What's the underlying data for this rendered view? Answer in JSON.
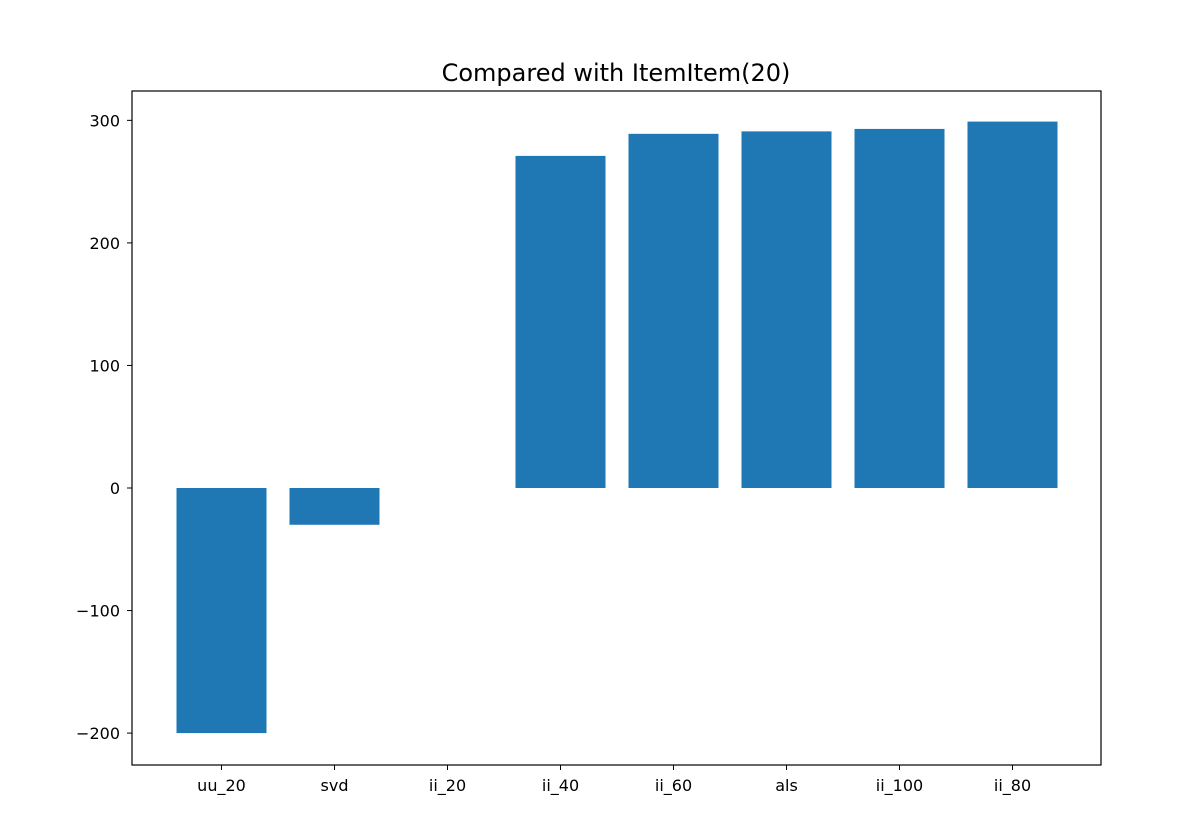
{
  "chart_data": {
    "type": "bar",
    "title": "Compared with ItemItem(20)",
    "xlabel": "",
    "ylabel": "",
    "categories": [
      "uu_20",
      "svd",
      "ii_20",
      "ii_40",
      "ii_60",
      "als",
      "ii_100",
      "ii_80"
    ],
    "values": [
      -200,
      -30,
      0,
      271,
      289,
      291,
      293,
      299
    ],
    "ylim": [
      -225,
      300
    ],
    "yticks": [
      300,
      200,
      100,
      0,
      -100,
      -200
    ],
    "ytick_labels": [
      "300",
      "200",
      "100",
      "0",
      "−100",
      "−200"
    ],
    "grid": false,
    "legend": "none",
    "bar_color": "#1f77b4"
  }
}
